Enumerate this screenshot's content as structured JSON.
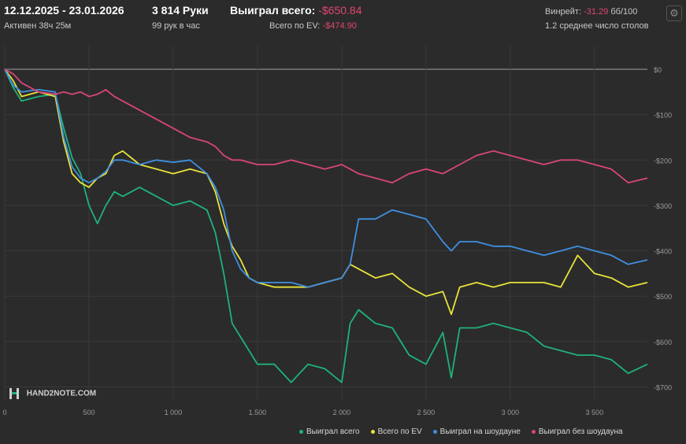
{
  "header": {
    "date_range": "12.12.2025 - 23.01.2026",
    "active": "Активен 38ч 25м",
    "hands": "3 814 Руки",
    "hands_per_hour": "99 рук в час",
    "won_label": "Выиграл всего:",
    "won_value": "-$650.84",
    "ev_label": "Всего по EV:",
    "ev_value": "-$474.90",
    "winrate_label": "Винрейт:",
    "winrate_value": "-31.29",
    "winrate_unit": "бб/100",
    "tables": "1.2 среднее число столов",
    "settings_icon": "gear-icon"
  },
  "logo": {
    "text": "HAND2NOTE.COM"
  },
  "colors": {
    "green": "#1fb27a",
    "yellow": "#e8e23a",
    "blue": "#3f8fe0",
    "pink": "#d9457a",
    "grid": "#3a3a3a"
  },
  "chart_data": {
    "type": "line",
    "xlim": [
      0,
      3814
    ],
    "ylim": [
      -720,
      0
    ],
    "x_ticks": [
      0,
      500,
      1000,
      1500,
      2000,
      2500,
      3000,
      3500
    ],
    "x_tick_labels": [
      "0",
      "500",
      "1 000",
      "1.500",
      "2 000",
      "2 500",
      "3 000",
      "3 500"
    ],
    "y_ticks": [
      0,
      -100,
      -200,
      -300,
      -400,
      -500,
      -600,
      -700
    ],
    "y_tick_labels": [
      "$0",
      "-$100",
      "-$200",
      "-$300",
      "-$400",
      "-$500",
      "-$600",
      "-$700"
    ],
    "legend_position": "bottom-right",
    "x": [
      0,
      50,
      100,
      200,
      300,
      350,
      400,
      450,
      500,
      550,
      600,
      650,
      700,
      800,
      900,
      1000,
      1100,
      1200,
      1250,
      1300,
      1350,
      1400,
      1450,
      1500,
      1600,
      1700,
      1800,
      1900,
      2000,
      2050,
      2100,
      2200,
      2300,
      2400,
      2500,
      2600,
      2650,
      2700,
      2800,
      2900,
      3000,
      3100,
      3200,
      3300,
      3400,
      3500,
      3600,
      3700,
      3814
    ],
    "series": [
      {
        "name": "Выиграл всего",
        "color_key": "green",
        "values": [
          0,
          -40,
          -70,
          -60,
          -55,
          -130,
          -195,
          -230,
          -300,
          -340,
          -300,
          -270,
          -280,
          -260,
          -280,
          -300,
          -290,
          -310,
          -360,
          -450,
          -560,
          -590,
          -620,
          -650,
          -650,
          -690,
          -650,
          -660,
          -690,
          -560,
          -530,
          -560,
          -570,
          -630,
          -650,
          -580,
          -680,
          -570,
          -570,
          -560,
          -570,
          -580,
          -610,
          -620,
          -630,
          -630,
          -640,
          -670,
          -650
        ]
      },
      {
        "name": "Всего по EV",
        "color_key": "yellow",
        "values": [
          0,
          -25,
          -60,
          -50,
          -60,
          -160,
          -230,
          -250,
          -260,
          -240,
          -230,
          -190,
          -180,
          -210,
          -220,
          -230,
          -220,
          -230,
          -270,
          -340,
          -390,
          -420,
          -460,
          -470,
          -480,
          -480,
          -480,
          -470,
          -460,
          -430,
          -440,
          -460,
          -450,
          -480,
          -500,
          -490,
          -540,
          -480,
          -470,
          -480,
          -470,
          -470,
          -470,
          -480,
          -410,
          -450,
          -460,
          -480,
          -470
        ]
      },
      {
        "name": "Выиграл на шоудауне",
        "color_key": "blue",
        "values": [
          0,
          -35,
          -50,
          -45,
          -50,
          -150,
          -215,
          -240,
          -250,
          -240,
          -225,
          -200,
          -200,
          -210,
          -200,
          -205,
          -200,
          -230,
          -260,
          -310,
          -400,
          -440,
          -460,
          -470,
          -470,
          -470,
          -480,
          -470,
          -460,
          -430,
          -330,
          -330,
          -310,
          -320,
          -330,
          -380,
          -400,
          -380,
          -380,
          -390,
          -390,
          -400,
          -410,
          -400,
          -390,
          -400,
          -410,
          -430,
          -420
        ]
      },
      {
        "name": "Выиграл без шоудауна",
        "color_key": "pink",
        "values": [
          0,
          -10,
          -30,
          -50,
          -55,
          -50,
          -55,
          -50,
          -60,
          -55,
          -45,
          -60,
          -70,
          -90,
          -110,
          -130,
          -150,
          -160,
          -170,
          -190,
          -200,
          -200,
          -205,
          -210,
          -210,
          -200,
          -210,
          -220,
          -210,
          -220,
          -230,
          -240,
          -250,
          -230,
          -220,
          -230,
          -220,
          -210,
          -190,
          -180,
          -190,
          -200,
          -210,
          -200,
          -200,
          -210,
          -220,
          -250,
          -240
        ]
      }
    ]
  }
}
